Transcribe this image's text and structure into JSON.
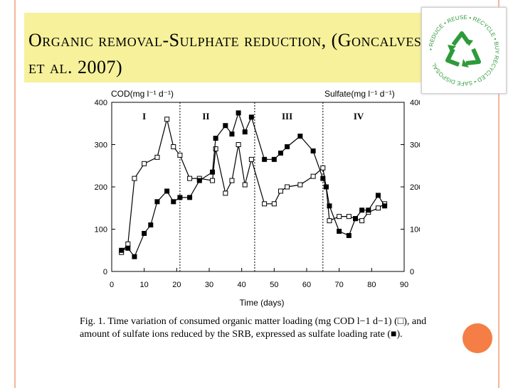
{
  "slide": {
    "title": "Organic removal-Sulphate reduction, (Goncalves et al. 2007)",
    "caption": "Fig. 1. Time variation of consumed organic matter loading (mg COD l−1 d−1) (□), and amount of sulfate ions reduced by the SRB, expressed as sulfate loading rate (■).",
    "logo_text": "• REDUCE • REUSE • RECYCLE • BUY RECYCLED • SAFE DISPOSAL"
  },
  "colors": {
    "title_band": "#f6f19a",
    "accent": "#f47e45",
    "rule": "#f2b79a",
    "logo_green": "#2e9b3a"
  },
  "chart_data": {
    "type": "line",
    "xlabel": "Time (days)",
    "ylabel_left": "COD(mg l⁻¹ d⁻¹)",
    "ylabel_right": "Sulfate(mg l⁻¹ d⁻¹)",
    "xlim": [
      0,
      90
    ],
    "ylim": [
      0,
      400
    ],
    "xticks": [
      0,
      10,
      20,
      30,
      40,
      50,
      60,
      70,
      80,
      90
    ],
    "yticks": [
      0,
      100,
      200,
      300,
      400
    ],
    "grid": false,
    "phase_lines": [
      21,
      44,
      65
    ],
    "phases": [
      {
        "label": "I",
        "x": 10
      },
      {
        "label": "II",
        "x": 29
      },
      {
        "label": "III",
        "x": 54
      },
      {
        "label": "IV",
        "x": 76
      }
    ],
    "series": [
      {
        "marker": "open-square",
        "x": [
          3,
          5,
          7,
          10,
          14,
          17,
          19,
          21,
          24,
          27,
          31,
          32,
          35,
          37,
          39,
          41,
          43,
          47,
          50,
          52,
          54,
          58,
          62,
          65,
          66,
          67,
          70,
          73,
          75,
          77,
          79,
          82,
          84
        ],
        "y": [
          45,
          65,
          220,
          255,
          270,
          360,
          295,
          275,
          220,
          220,
          215,
          290,
          185,
          215,
          300,
          205,
          265,
          160,
          160,
          190,
          200,
          205,
          225,
          245,
          200,
          120,
          130,
          130,
          125,
          120,
          140,
          150,
          160
        ]
      },
      {
        "marker": "filled-square",
        "x": [
          3,
          5,
          7,
          10,
          12,
          14,
          17,
          19,
          21,
          24,
          27,
          31,
          32,
          35,
          37,
          39,
          41,
          43,
          47,
          50,
          52,
          54,
          58,
          62,
          65,
          66,
          67,
          70,
          73,
          75,
          77,
          79,
          82,
          84
        ],
        "y": [
          50,
          55,
          35,
          90,
          110,
          165,
          190,
          165,
          175,
          175,
          215,
          235,
          315,
          345,
          325,
          375,
          330,
          365,
          265,
          265,
          280,
          295,
          320,
          285,
          220,
          200,
          155,
          95,
          85,
          125,
          145,
          145,
          180,
          155
        ]
      }
    ]
  }
}
